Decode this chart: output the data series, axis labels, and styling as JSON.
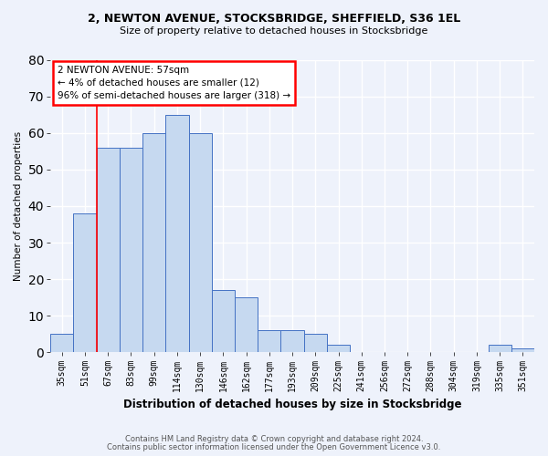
{
  "title_line1": "2, NEWTON AVENUE, STOCKSBRIDGE, SHEFFIELD, S36 1EL",
  "title_line2": "Size of property relative to detached houses in Stocksbridge",
  "xlabel": "Distribution of detached houses by size in Stocksbridge",
  "ylabel": "Number of detached properties",
  "categories": [
    "35sqm",
    "51sqm",
    "67sqm",
    "83sqm",
    "99sqm",
    "114sqm",
    "130sqm",
    "146sqm",
    "162sqm",
    "177sqm",
    "193sqm",
    "209sqm",
    "225sqm",
    "241sqm",
    "256sqm",
    "272sqm",
    "288sqm",
    "304sqm",
    "319sqm",
    "335sqm",
    "351sqm"
  ],
  "values": [
    5,
    38,
    56,
    56,
    60,
    65,
    60,
    17,
    15,
    6,
    6,
    5,
    2,
    0,
    0,
    0,
    0,
    0,
    0,
    2,
    1
  ],
  "bar_color": "#c6d9f0",
  "bar_edge_color": "#4472c4",
  "red_line_x": 1.5,
  "annotation_line1": "2 NEWTON AVENUE: 57sqm",
  "annotation_line2": "← 4% of detached houses are smaller (12)",
  "annotation_line3": "96% of semi-detached houses are larger (318) →",
  "annotation_box_color": "white",
  "annotation_box_edge_color": "red",
  "ylim": [
    0,
    80
  ],
  "yticks": [
    0,
    10,
    20,
    30,
    40,
    50,
    60,
    70,
    80
  ],
  "footer_line1": "Contains HM Land Registry data © Crown copyright and database right 2024.",
  "footer_line2": "Contains public sector information licensed under the Open Government Licence v3.0.",
  "background_color": "#eef2fb",
  "grid_color": "white"
}
